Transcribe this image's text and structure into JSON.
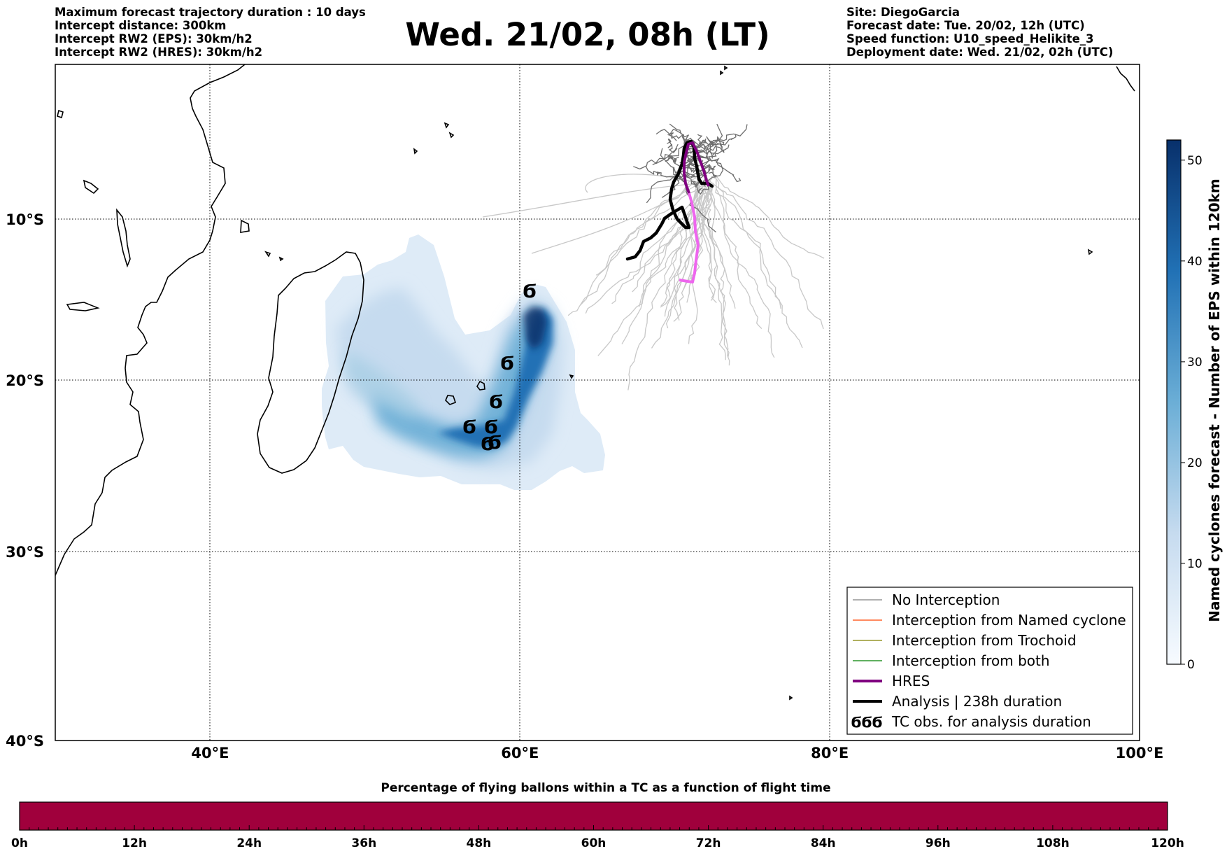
{
  "header_left": [
    "Maximum forecast trajectory duration : 10 days",
    "Intercept distance: 300km",
    "Intercept RW2 (EPS):  30km/h2",
    "Intercept RW2 (HRES): 30km/h2"
  ],
  "title": "Wed. 21/02, 08h (LT)",
  "header_right": [
    "Site: DiegoGarcia",
    "Forecast date: Tue. 20/02, 12h (UTC)",
    "Speed function: U10_speed_Helikite_3",
    "Deployment date: Wed. 21/02, 02h (UTC)"
  ],
  "map": {
    "lon_range": [
      30,
      100
    ],
    "lat_range": [
      -40,
      0
    ],
    "lon_labels": [
      {
        "lon": 40,
        "text": "40°E"
      },
      {
        "lon": 60,
        "text": "60°E"
      },
      {
        "lon": 80,
        "text": "80°E"
      },
      {
        "lon": 100,
        "text": "100°E"
      }
    ],
    "lat_labels": [
      {
        "lat": -10,
        "text": "10°S"
      },
      {
        "lat": -20,
        "text": "20°S"
      },
      {
        "lat": -30,
        "text": "30°S"
      },
      {
        "lat": -40,
        "text": "40°S"
      }
    ],
    "grid": "dotted"
  },
  "colorbar": {
    "title": "Named cyclones forecast - Number of EPS within 120km",
    "ticks": [
      0,
      10,
      20,
      30,
      40,
      50
    ],
    "max": 52
  },
  "legend": {
    "items": [
      {
        "label": "No Interception",
        "color": "#808080",
        "style": "thin"
      },
      {
        "label": "Interception from Named cyclone",
        "color": "#ff4500",
        "style": "thin"
      },
      {
        "label": "Interception from Trochoid",
        "color": "#808000",
        "style": "thin"
      },
      {
        "label": "Interception from both",
        "color": "#008000",
        "style": "thin"
      },
      {
        "label": "HRES",
        "color": "#800080",
        "style": "thick"
      },
      {
        "label": "Analysis | 238h duration",
        "color": "#000000",
        "style": "thick"
      },
      {
        "label": "TC obs. for analysis duration",
        "color": "#000000",
        "style": "symbols",
        "symbols": "ϬϬϬ"
      }
    ]
  },
  "tc_symbol": "Ϭ",
  "bottom_bar": {
    "title": "Percentage of flying ballons within a TC as a function of flight time",
    "ticks": [
      "0h",
      "12h",
      "24h",
      "36h",
      "48h",
      "60h",
      "72h",
      "84h",
      "96h",
      "108h",
      "120h"
    ],
    "color": "#a0003c"
  },
  "colors": {
    "hres_early": "#800080",
    "hres_late": "#ee66ee",
    "analysis": "#000000",
    "trajectory_dark": "#6e6e6e",
    "trajectory_light": "#c8c8c8",
    "density_low": "#deebf7",
    "density_high": "#08306b"
  }
}
